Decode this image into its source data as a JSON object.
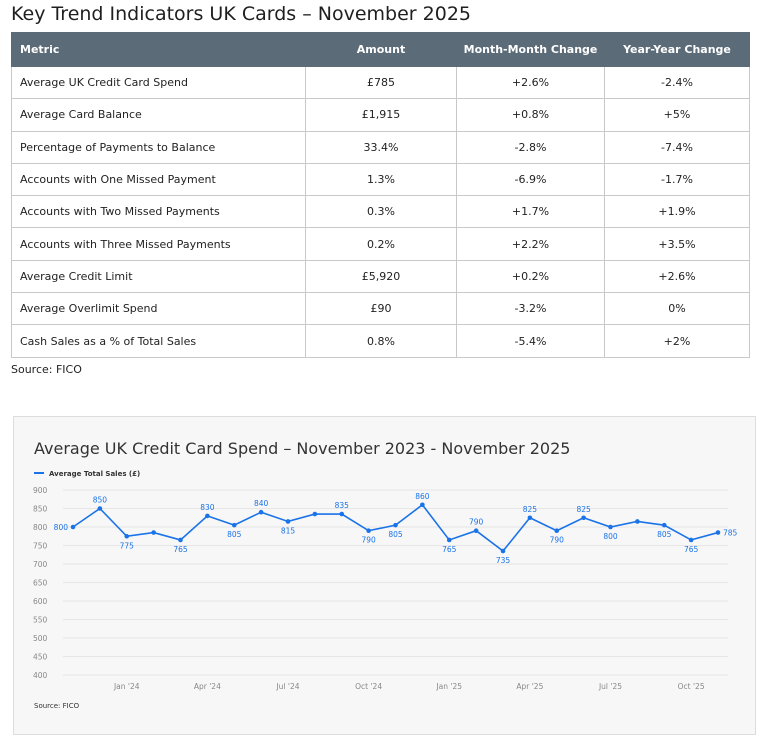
{
  "title": "Key Trend Indicators UK Cards – November 2025",
  "table": {
    "headers": [
      "Metric",
      "Amount",
      "Month-Month Change",
      "Year-Year Change"
    ],
    "rows": [
      [
        "Average UK Credit Card Spend",
        "£785",
        "+2.6%",
        "-2.4%"
      ],
      [
        "Average Card Balance",
        "£1,915",
        "+0.8%",
        "+5%"
      ],
      [
        "Percentage of Payments to Balance",
        "33.4%",
        "-2.8%",
        "-7.4%"
      ],
      [
        "Accounts with One Missed Payment",
        "1.3%",
        "-6.9%",
        "-1.7%"
      ],
      [
        "Accounts with Two Missed Payments",
        "0.3%",
        "+1.7%",
        "+1.9%"
      ],
      [
        "Accounts with Three Missed Payments",
        "0.2%",
        "+2.2%",
        "+3.5%"
      ],
      [
        "Average Credit Limit",
        "£5,920",
        "+0.2%",
        "+2.6%"
      ],
      [
        "Average Overlimit Spend",
        "£90",
        "-3.2%",
        "0%"
      ],
      [
        "Cash Sales as a % of Total Sales",
        "0.8%",
        "-5.4%",
        "+2%"
      ]
    ]
  },
  "source": "Source: FICO",
  "chart_data": {
    "type": "line",
    "title": "Average UK Credit Card Spend – November 2023 - November 2025",
    "legend": "Average Total Sales (£)",
    "legend_position": "top-left",
    "color": "#1a73e8",
    "ylim": [
      400,
      900
    ],
    "yticks": [
      400,
      450,
      500,
      550,
      600,
      650,
      700,
      750,
      800,
      850,
      900
    ],
    "xticks": [
      {
        "index": 2,
        "label": "Jan '24"
      },
      {
        "index": 5,
        "label": "Apr '24"
      },
      {
        "index": 8,
        "label": "Jul '24"
      },
      {
        "index": 11,
        "label": "Oct '24"
      },
      {
        "index": 14,
        "label": "Jan '25"
      },
      {
        "index": 17,
        "label": "Apr '25"
      },
      {
        "index": 20,
        "label": "Jul '25"
      },
      {
        "index": 23,
        "label": "Oct '25"
      }
    ],
    "values": [
      800,
      850,
      775,
      785,
      765,
      830,
      805,
      840,
      815,
      835,
      835,
      790,
      805,
      860,
      765,
      790,
      735,
      825,
      790,
      825,
      800,
      815,
      805,
      765,
      785
    ],
    "labeled": [
      true,
      true,
      true,
      false,
      true,
      true,
      true,
      true,
      true,
      false,
      true,
      true,
      true,
      true,
      true,
      true,
      true,
      true,
      true,
      true,
      true,
      false,
      true,
      true,
      true
    ],
    "source": "Source: FICO"
  }
}
